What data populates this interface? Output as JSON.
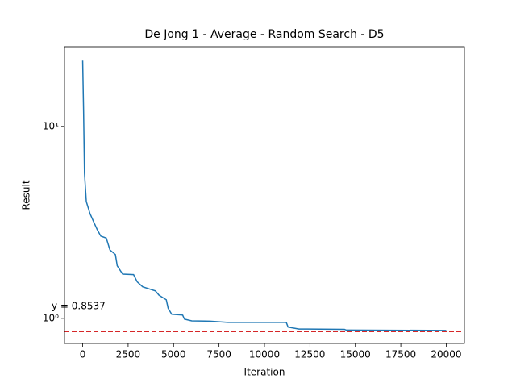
{
  "chart_data": {
    "type": "line",
    "title": "De Jong 1 - Average - Random Search - D5",
    "x_label": "Iteration",
    "y_label": "Result",
    "y_scale": "log",
    "x": [
      0,
      50,
      100,
      200,
      400,
      600,
      800,
      1000,
      1300,
      1500,
      1800,
      1900,
      2200,
      2800,
      3000,
      3300,
      4000,
      4200,
      4600,
      4700,
      4900,
      5500,
      5600,
      6000,
      7000,
      8000,
      11200,
      11300,
      11900,
      14400,
      14500,
      20000
    ],
    "series": [
      {
        "name": "Average",
        "color": "#1f77b4",
        "values": [
          22,
          12,
          5.7,
          4.06,
          3.52,
          3.19,
          2.9,
          2.68,
          2.62,
          2.27,
          2.15,
          1.88,
          1.7,
          1.69,
          1.55,
          1.46,
          1.39,
          1.32,
          1.25,
          1.13,
          1.05,
          1.04,
          0.99,
          0.97,
          0.967,
          0.953,
          0.953,
          0.9,
          0.88,
          0.877,
          0.869,
          0.865
        ]
      }
    ],
    "hline": {
      "value": 0.8537,
      "color": "#d62728",
      "label": "y = 0.8537"
    },
    "xlim": [
      -1000,
      21000
    ],
    "xticks": [
      0,
      2500,
      5000,
      7500,
      10000,
      12500,
      15000,
      17500,
      20000
    ],
    "ylim": [
      0.74,
      26
    ],
    "yticks": [
      {
        "value": 1,
        "label": "10⁰"
      },
      {
        "value": 10,
        "label": "10¹"
      }
    ]
  }
}
